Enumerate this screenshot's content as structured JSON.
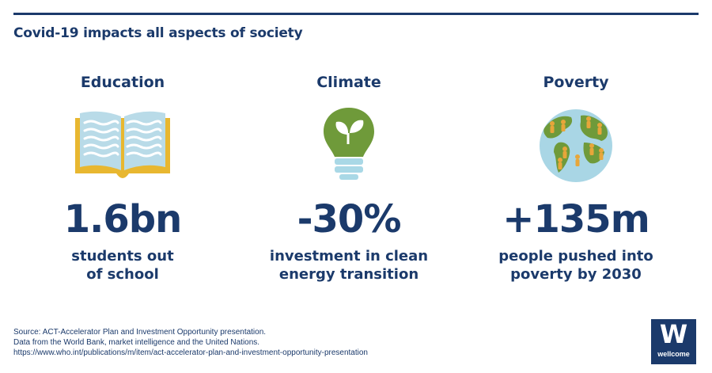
{
  "headline": "Covid-19 impacts all aspects of society",
  "columns": [
    {
      "title": "Education",
      "icon": "open-book-icon",
      "stat": "1.6bn",
      "desc_line1": "students out",
      "desc_line2": "of school"
    },
    {
      "title": "Climate",
      "icon": "eco-lightbulb-icon",
      "stat": "-30%",
      "desc_line1": "investment in clean",
      "desc_line2": "energy transition"
    },
    {
      "title": "Poverty",
      "icon": "globe-people-icon",
      "stat": "+135m",
      "desc_line1": "people pushed into",
      "desc_line2": "poverty by 2030"
    }
  ],
  "footer": {
    "line1": "Source: ACT-Accelerator Plan and Investment Opportunity presentation.",
    "line2": "Data from the World Bank, market intelligence and the United Nations.",
    "line3": "https://www.who.int/publications/m/item/act-accelerator-plan-and-investment-opportunity-presentation"
  },
  "logo": {
    "mark": "W",
    "word": "wellcome"
  },
  "colors": {
    "navy": "#1b3a6b",
    "book_yellow": "#e8b730",
    "book_page": "#b9dbe8",
    "leaf_green": "#6f9a3a",
    "bulb_base": "#a9d8e6",
    "globe_blue": "#a9d6e5",
    "land_green": "#6f9a3a",
    "people_orange": "#e7a63a"
  }
}
